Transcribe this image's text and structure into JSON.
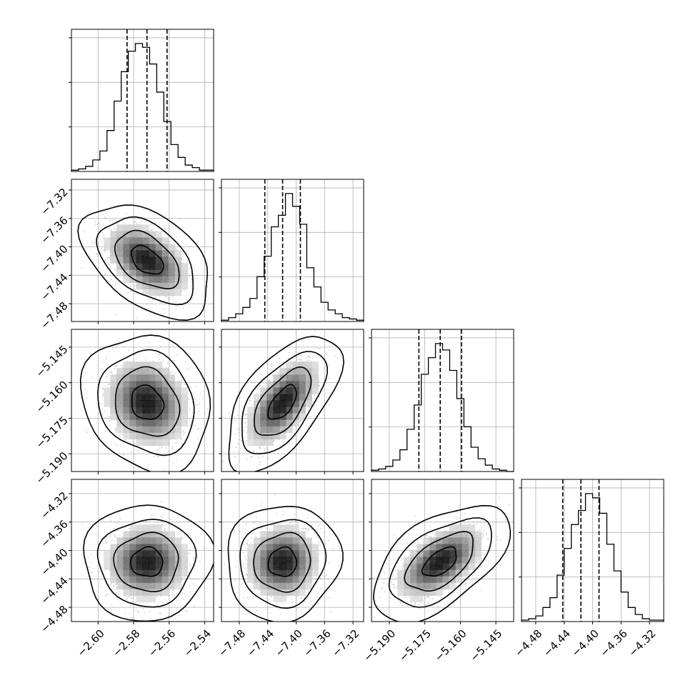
{
  "chart_data": {
    "type": "corner",
    "params": [
      {
        "range": [
          -2.615,
          -2.535
        ],
        "ticks": [
          -2.6,
          -2.58,
          -2.56,
          -2.54
        ],
        "tick_labels": [
          "−2.60",
          "−2.58",
          "−2.56",
          "−2.54"
        ],
        "quantiles": [
          -2.5837,
          -2.5725,
          -2.5612
        ],
        "median": -2.5725,
        "sigma": 0.0113,
        "hist": [
          1,
          2,
          4,
          9,
          16,
          32,
          55,
          78,
          94,
          100,
          97,
          84,
          62,
          39,
          21,
          11,
          5,
          3,
          1,
          1
        ]
      },
      {
        "range": [
          -7.505,
          -7.305
        ],
        "ticks": [
          -7.48,
          -7.44,
          -7.4,
          -7.36,
          -7.32
        ],
        "tick_labels": [
          "−7.48",
          "−7.44",
          "−7.40",
          "−7.36",
          "−7.32"
        ],
        "quantiles": [
          -7.444,
          -7.419,
          -7.394
        ],
        "median": -7.419,
        "sigma": 0.025,
        "hist": [
          1,
          3,
          6,
          11,
          18,
          35,
          51,
          74,
          83,
          100,
          90,
          76,
          42,
          27,
          15,
          9,
          6,
          3,
          2,
          1
        ]
      },
      {
        "range": [
          -5.1975,
          -5.1375
        ],
        "ticks": [
          -5.19,
          -5.175,
          -5.16,
          -5.145
        ],
        "tick_labels": [
          "−5.190",
          "−5.175",
          "−5.160",
          "−5.145"
        ],
        "quantiles": [
          -5.1775,
          -5.1685,
          -5.1595
        ],
        "median": -5.1685,
        "sigma": 0.009,
        "hist": [
          1,
          2,
          4,
          9,
          17,
          33,
          52,
          76,
          89,
          100,
          95,
          79,
          57,
          35,
          19,
          10,
          5,
          2,
          1,
          0
        ]
      },
      {
        "range": [
          -4.5,
          -4.3
        ],
        "ticks": [
          -4.48,
          -4.44,
          -4.4,
          -4.36,
          -4.32
        ],
        "tick_labels": [
          "−4.48",
          "−4.44",
          "−4.40",
          "−4.36",
          "−4.32"
        ],
        "quantiles": [
          -4.442,
          -4.4165,
          -4.391
        ],
        "median": -4.4165,
        "sigma": 0.0255,
        "hist": [
          1,
          2,
          4,
          10,
          17,
          33,
          52,
          69,
          79,
          91,
          88,
          77,
          55,
          36,
          21,
          10,
          5,
          2,
          1,
          1
        ]
      }
    ],
    "correlations": [
      {
        "row": 1,
        "col": 0,
        "rho": -0.45
      },
      {
        "row": 2,
        "col": 0,
        "rho": -0.15
      },
      {
        "row": 2,
        "col": 1,
        "rho": 0.6
      },
      {
        "row": 3,
        "col": 0,
        "rho": 0.02
      },
      {
        "row": 3,
        "col": 1,
        "rho": 0.05
      },
      {
        "row": 3,
        "col": 2,
        "rho": 0.55
      }
    ],
    "contour_levels_sigma": [
      0.5,
      1.0,
      1.5,
      2.0
    ],
    "grid": true,
    "colors": {
      "line": "#000000",
      "points": "#9a9a9a",
      "grid": "#b0b0b0",
      "density_dark": "#000000",
      "density_light": "#ffffff"
    }
  }
}
